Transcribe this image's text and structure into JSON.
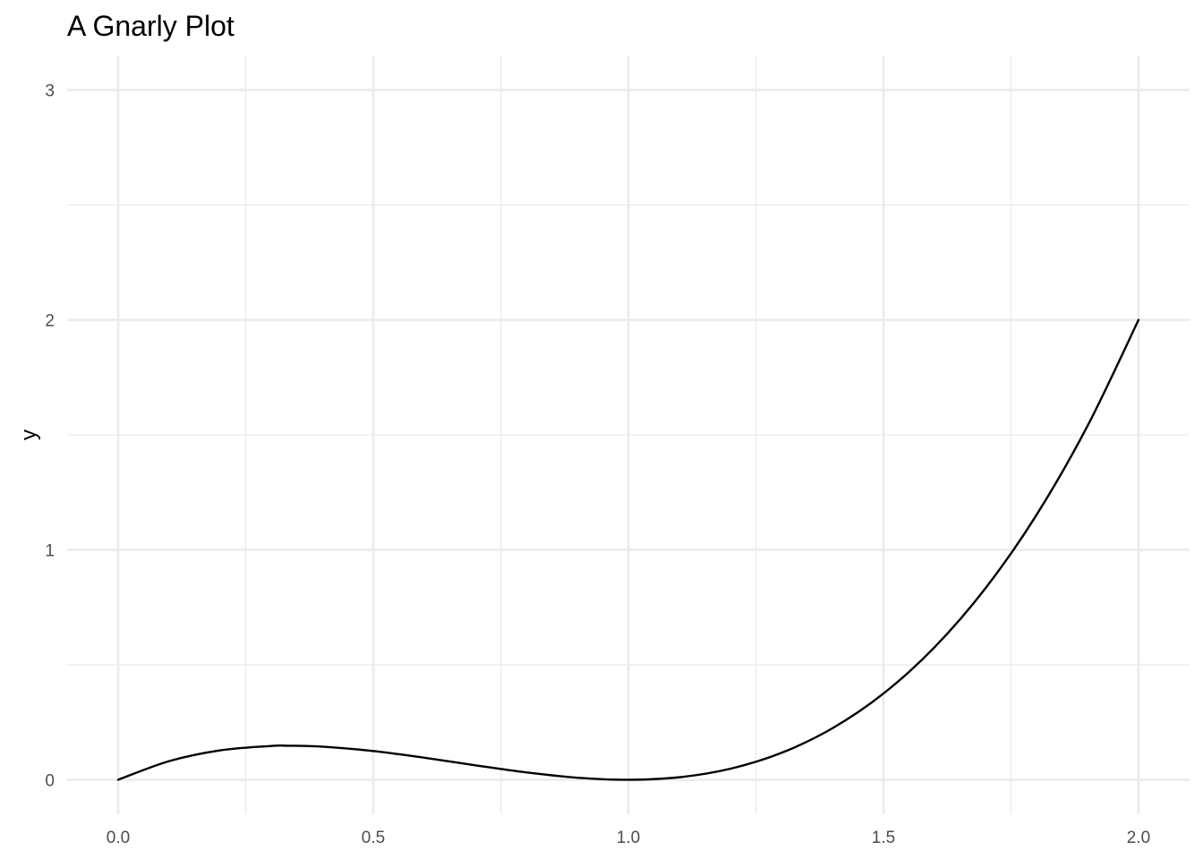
{
  "chart_data": {
    "type": "line",
    "title": "A Gnarly Plot",
    "xlabel": "",
    "ylabel": "y",
    "xlim": [
      -0.1,
      2.1
    ],
    "ylim": [
      -0.15,
      3.15
    ],
    "x_ticks": [
      0.0,
      0.5,
      1.0,
      1.5,
      2.0
    ],
    "x_tick_labels": [
      "0.0",
      "0.5",
      "1.0",
      "1.5",
      "2.0"
    ],
    "y_ticks": [
      0,
      1,
      2,
      3
    ],
    "y_tick_labels": [
      "0",
      "1",
      "2",
      "3"
    ],
    "x_minor_ticks": [
      0.25,
      0.75,
      1.25,
      1.75
    ],
    "y_minor_ticks": [
      0.5,
      1.5,
      2.5
    ],
    "grid": true,
    "legend": "none",
    "series": [
      {
        "color": "#000000",
        "x": [
          0.0,
          0.1,
          0.2,
          0.3,
          0.333,
          0.4,
          0.5,
          0.6,
          0.7,
          0.8,
          0.9,
          1.0,
          1.1,
          1.2,
          1.3,
          1.4,
          1.5,
          1.6,
          1.7,
          1.8,
          1.9,
          2.0
        ],
        "y": [
          0.0,
          0.081,
          0.128,
          0.147,
          0.148,
          0.144,
          0.125,
          0.096,
          0.063,
          0.032,
          0.009,
          0.0,
          0.011,
          0.048,
          0.117,
          0.224,
          0.375,
          0.576,
          0.833,
          1.152,
          1.539,
          2.0
        ]
      }
    ]
  }
}
